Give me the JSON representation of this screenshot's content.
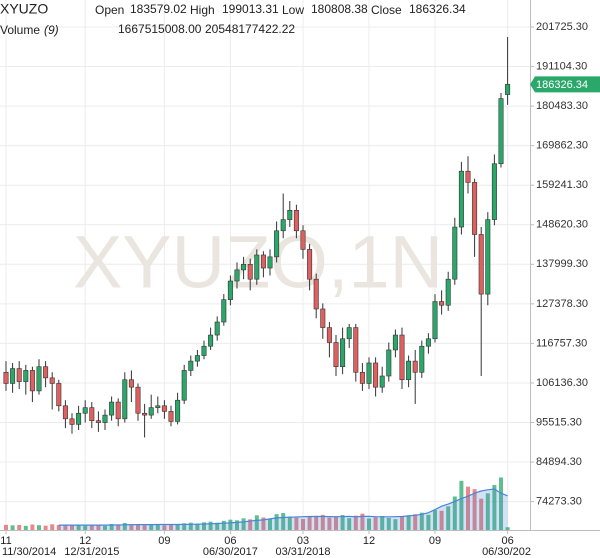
{
  "chart_data": {
    "type": "candlestick",
    "symbol": "XYUZO",
    "watermark": "XYUZO,1N",
    "header": {
      "open": "Open",
      "high": "High",
      "low": "Low",
      "close": "Close"
    },
    "up_color": "#2aa86a",
    "down_color": "#e06060",
    "grid": true,
    "open": [
      109000,
      106000,
      110000,
      106500,
      109500,
      104000,
      110500,
      107500,
      106000,
      100000,
      96500,
      95000,
      98000,
      99500,
      96000,
      95500,
      97500,
      101000,
      96500,
      107000,
      105000,
      98000,
      97500,
      99500,
      100000,
      98500,
      95800,
      101500,
      109500,
      112000,
      113500,
      116000,
      119000,
      122500,
      128500,
      133500,
      136500,
      138000,
      134000,
      140500,
      137000,
      140000,
      147000,
      150000,
      152500,
      147000,
      142000,
      134000,
      126000,
      121000,
      117000,
      110500,
      118000,
      121000,
      109000,
      106000,
      111500,
      105000,
      108000,
      115000,
      119000,
      107000,
      112000,
      109000,
      116000,
      118000,
      128000,
      127000,
      134000,
      148000,
      163000,
      160000,
      146000,
      130000,
      150000,
      165000,
      183579.02
    ],
    "high": [
      112000,
      111500,
      112000,
      111000,
      110500,
      112500,
      112000,
      109000,
      107000,
      101500,
      98000,
      100000,
      101500,
      101000,
      98500,
      99000,
      102500,
      102000,
      109000,
      109500,
      106000,
      100500,
      103000,
      102500,
      101500,
      100000,
      103500,
      111000,
      113500,
      115000,
      117500,
      121000,
      124000,
      130000,
      135000,
      138500,
      140000,
      139500,
      142000,
      141500,
      142000,
      149500,
      157000,
      155000,
      154000,
      148500,
      143500,
      135500,
      127500,
      122500,
      119000,
      121000,
      122000,
      122000,
      111500,
      113000,
      113000,
      110500,
      117000,
      120500,
      121000,
      113500,
      115000,
      117500,
      119500,
      130000,
      131000,
      136000,
      150500,
      165500,
      167000,
      161000,
      148000,
      152000,
      167500,
      184000,
      199013.31
    ],
    "low": [
      104000,
      103500,
      104500,
      103000,
      101000,
      103000,
      105000,
      99000,
      98500,
      94000,
      92500,
      93500,
      95500,
      94000,
      93000,
      93500,
      96000,
      94500,
      95500,
      101000,
      96000,
      91500,
      96500,
      98000,
      96500,
      94500,
      95000,
      100500,
      108000,
      110500,
      112500,
      115000,
      117500,
      121500,
      127000,
      131500,
      134000,
      131000,
      132500,
      134500,
      135000,
      138500,
      145000,
      148000,
      145000,
      139500,
      131000,
      123500,
      118000,
      113000,
      108000,
      108500,
      115500,
      106500,
      104000,
      104500,
      102500,
      103500,
      106500,
      113000,
      104500,
      105000,
      100500,
      107500,
      114000,
      117000,
      124500,
      125500,
      132500,
      146000,
      157000,
      140000,
      108000,
      127000,
      148500,
      164000,
      180808.38
    ],
    "close": [
      106000,
      110000,
      106500,
      109500,
      104000,
      110500,
      107500,
      106000,
      100000,
      96500,
      95000,
      98000,
      99500,
      96000,
      95500,
      97500,
      101000,
      96500,
      107000,
      105000,
      98000,
      97500,
      99500,
      100000,
      98500,
      95800,
      101500,
      109500,
      112000,
      113500,
      116000,
      119000,
      122500,
      128500,
      133500,
      136500,
      138000,
      134000,
      140500,
      137000,
      140000,
      147000,
      150000,
      152500,
      147000,
      142000,
      134000,
      126000,
      121000,
      117000,
      110500,
      118000,
      121000,
      109000,
      106000,
      111500,
      105000,
      108000,
      115000,
      119000,
      107000,
      112000,
      109000,
      116000,
      118000,
      128000,
      127000,
      134000,
      148000,
      163000,
      160000,
      146000,
      130000,
      150000,
      165000,
      182500,
      186326.34
    ],
    "ylim": [
      66645,
      208976
    ],
    "yticks": [
      {
        "value": 201725.3,
        "label": "201725.30"
      },
      {
        "value": 191104.3,
        "label": "191104.30"
      },
      {
        "value": 180483.3,
        "label": "180483.30"
      },
      {
        "value": 169862.3,
        "label": "169862.30"
      },
      {
        "value": 159241.3,
        "label": "159241.30"
      },
      {
        "value": 148620.3,
        "label": "148620.30"
      },
      {
        "value": 137999.3,
        "label": "137999.30"
      },
      {
        "value": 127378.3,
        "label": "127378.30"
      },
      {
        "value": 116757.3,
        "label": "116757.30"
      },
      {
        "value": 106136.3,
        "label": "106136.30"
      },
      {
        "value": 95515.3,
        "label": "95515.30"
      },
      {
        "value": 84894.3,
        "label": "84894.30"
      },
      {
        "value": 74273.3,
        "label": "74273.30"
      }
    ],
    "xticks": [
      {
        "value": 0,
        "label": "11"
      },
      {
        "value": 12,
        "label": "12"
      },
      {
        "value": 24,
        "label": "09"
      },
      {
        "value": 34,
        "label": "06"
      },
      {
        "value": 45,
        "label": "03"
      },
      {
        "value": 55,
        "label": "12"
      },
      {
        "value": 65,
        "label": "09"
      },
      {
        "value": 76,
        "label": "06"
      }
    ],
    "xticks_long": [
      {
        "value": 0,
        "label": "11/30/2014"
      },
      {
        "value": 13,
        "label": "12/31/2015"
      },
      {
        "value": 34,
        "label": "06/30/2017"
      },
      {
        "value": 45,
        "label": "03/31/2018"
      },
      {
        "value": 76,
        "label": "06/30/202"
      }
    ],
    "volume": {
      "name": "Volume",
      "period": "(9)",
      "last_label": "1667515008.00",
      "ylim": [
        0,
        60000000000
      ],
      "values": [
        3100000000,
        2800000000,
        3000000000,
        2500000000,
        3300000000,
        2900000000,
        2600000000,
        3400000000,
        3000000000,
        2700000000,
        2900000000,
        3200000000,
        2600000000,
        2800000000,
        3100000000,
        2500000000,
        3600000000,
        3000000000,
        4200000000,
        3500000000,
        3300000000,
        2900000000,
        3000000000,
        3400000000,
        2800000000,
        3100000000,
        3600000000,
        4000000000,
        4400000000,
        3900000000,
        4600000000,
        5000000000,
        4300000000,
        5500000000,
        6200000000,
        5800000000,
        7000000000,
        6400000000,
        8800000000,
        7500000000,
        6900000000,
        9500000000,
        10200000000,
        8100000000,
        7300000000,
        6600000000,
        7800000000,
        8500000000,
        9100000000,
        7400000000,
        8200000000,
        9000000000,
        7100000000,
        8600000000,
        9800000000,
        6900000000,
        7700000000,
        8400000000,
        7200000000,
        6500000000,
        7900000000,
        8800000000,
        9500000000,
        10400000000,
        9100000000,
        12000000000,
        11500000000,
        14200000000,
        20100000000,
        29500000000,
        26000000000,
        24500000000,
        18800000000,
        22000000000,
        27000000000,
        31500000000,
        1667515008
      ],
      "ma": {
        "color": "#4a86d8",
        "last_label": "20548177422.22",
        "values": [
          null,
          null,
          null,
          null,
          null,
          null,
          null,
          null,
          2960000000,
          2930000000,
          2920000000,
          2950000000,
          2910000000,
          2930000000,
          2930000000,
          2910000000,
          2980000000,
          2980000000,
          3130000000,
          3200000000,
          3240000000,
          3210000000,
          3260000000,
          3320000000,
          3290000000,
          3330000000,
          3330000000,
          3370000000,
          3420000000,
          3480000000,
          3590000000,
          3750000000,
          3900000000,
          4070000000,
          4270000000,
          4570000000,
          4880000000,
          5370000000,
          5740000000,
          6070000000,
          6650000000,
          7280000000,
          7500000000,
          7680000000,
          7780000000,
          7980000000,
          8070000000,
          8070000000,
          8100000000,
          8060000000,
          8000000000,
          7990000000,
          8150000000,
          7950000000,
          8140000000,
          8220000000,
          7990000000,
          7900000000,
          7910000000,
          7960000000,
          8130000000,
          8470000000,
          8810000000,
          9420000000,
          10390000000,
          12270000000,
          14290000000,
          15530000000,
          17150000000,
          18840000000,
          20280000000,
          22080000000,
          23400000000,
          24120000000,
          24600000000,
          22100000000,
          20548177422.22
        ]
      }
    }
  }
}
